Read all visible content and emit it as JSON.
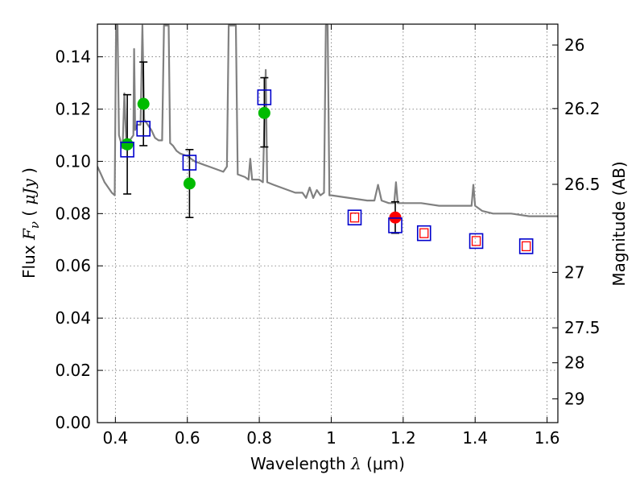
{
  "chart_data": {
    "type": "scatter",
    "title": "",
    "xlabel": "Wavelength",
    "xlabel_symbol": "λ",
    "xlabel_unit": "μm",
    "ylabel": "Flux",
    "ylabel_symbol": "F",
    "ylabel_subscript": "ν",
    "ylabel_unit": "μJy",
    "y2label": "Magnitude (AB)",
    "xlim": [
      0.35,
      1.63
    ],
    "ylim": [
      0.0,
      0.1525
    ],
    "grid": true,
    "x_ticks": [
      0.4,
      0.6,
      0.8,
      1.0,
      1.2,
      1.4,
      1.6
    ],
    "x_tick_labels": [
      "0.4",
      "0.6",
      "0.8",
      "1",
      "1.2",
      "1.4",
      "1.6"
    ],
    "y_ticks": [
      0.0,
      0.02,
      0.04,
      0.06,
      0.08,
      0.1,
      0.12,
      0.14
    ],
    "y_tick_labels": [
      "0.00",
      "0.02",
      "0.04",
      "0.06",
      "0.08",
      "0.10",
      "0.12",
      "0.14"
    ],
    "y2_ticks": [
      {
        "label": "26",
        "flux": 0.1445
      },
      {
        "label": "26.2",
        "flux": 0.1202
      },
      {
        "label": "26.5",
        "flux": 0.0912
      },
      {
        "label": "27",
        "flux": 0.0575
      },
      {
        "label": "27.5",
        "flux": 0.0363
      },
      {
        "label": "28",
        "flux": 0.0229
      },
      {
        "label": "29",
        "flux": 0.0091
      }
    ],
    "series": [
      {
        "name": "Model spectrum",
        "kind": "line",
        "color": "#808080",
        "points": [
          [
            0.35,
            0.098
          ],
          [
            0.36,
            0.095
          ],
          [
            0.37,
            0.092
          ],
          [
            0.38,
            0.09
          ],
          [
            0.39,
            0.088
          ],
          [
            0.398,
            0.087
          ],
          [
            0.402,
            0.152
          ],
          [
            0.406,
            0.152
          ],
          [
            0.41,
            0.11
          ],
          [
            0.42,
            0.105
          ],
          [
            0.425,
            0.126
          ],
          [
            0.43,
            0.108
          ],
          [
            0.44,
            0.108
          ],
          [
            0.45,
            0.11
          ],
          [
            0.452,
            0.143
          ],
          [
            0.455,
            0.112
          ],
          [
            0.46,
            0.114
          ],
          [
            0.47,
            0.114
          ],
          [
            0.475,
            0.152
          ],
          [
            0.48,
            0.116
          ],
          [
            0.49,
            0.114
          ],
          [
            0.5,
            0.112
          ],
          [
            0.51,
            0.109
          ],
          [
            0.52,
            0.108
          ],
          [
            0.53,
            0.108
          ],
          [
            0.535,
            0.152
          ],
          [
            0.545,
            0.152
          ],
          [
            0.548,
            0.152
          ],
          [
            0.552,
            0.107
          ],
          [
            0.56,
            0.106
          ],
          [
            0.57,
            0.104
          ],
          [
            0.58,
            0.103
          ],
          [
            0.6,
            0.102
          ],
          [
            0.62,
            0.1
          ],
          [
            0.64,
            0.099
          ],
          [
            0.66,
            0.098
          ],
          [
            0.68,
            0.097
          ],
          [
            0.7,
            0.096
          ],
          [
            0.71,
            0.098
          ],
          [
            0.715,
            0.152
          ],
          [
            0.725,
            0.152
          ],
          [
            0.735,
            0.152
          ],
          [
            0.74,
            0.095
          ],
          [
            0.76,
            0.094
          ],
          [
            0.77,
            0.093
          ],
          [
            0.775,
            0.101
          ],
          [
            0.78,
            0.093
          ],
          [
            0.8,
            0.093
          ],
          [
            0.81,
            0.092
          ],
          [
            0.818,
            0.135
          ],
          [
            0.822,
            0.092
          ],
          [
            0.84,
            0.091
          ],
          [
            0.86,
            0.09
          ],
          [
            0.88,
            0.089
          ],
          [
            0.9,
            0.088
          ],
          [
            0.92,
            0.088
          ],
          [
            0.93,
            0.086
          ],
          [
            0.94,
            0.09
          ],
          [
            0.95,
            0.086
          ],
          [
            0.96,
            0.089
          ],
          [
            0.97,
            0.087
          ],
          [
            0.98,
            0.088
          ],
          [
            0.985,
            0.152
          ],
          [
            0.99,
            0.152
          ],
          [
            0.995,
            0.087
          ],
          [
            1.0,
            0.087
          ],
          [
            1.05,
            0.086
          ],
          [
            1.1,
            0.085
          ],
          [
            1.12,
            0.085
          ],
          [
            1.13,
            0.091
          ],
          [
            1.14,
            0.085
          ],
          [
            1.16,
            0.084
          ],
          [
            1.175,
            0.084
          ],
          [
            1.18,
            0.092
          ],
          [
            1.185,
            0.084
          ],
          [
            1.2,
            0.084
          ],
          [
            1.25,
            0.084
          ],
          [
            1.3,
            0.083
          ],
          [
            1.35,
            0.083
          ],
          [
            1.38,
            0.083
          ],
          [
            1.39,
            0.083
          ],
          [
            1.395,
            0.091
          ],
          [
            1.4,
            0.083
          ],
          [
            1.42,
            0.081
          ],
          [
            1.45,
            0.08
          ],
          [
            1.5,
            0.08
          ],
          [
            1.55,
            0.079
          ],
          [
            1.63,
            0.079
          ]
        ]
      },
      {
        "name": "Observed photometry",
        "kind": "errorbar",
        "color": "#000000",
        "points": [
          {
            "x": 0.433,
            "y": 0.1065,
            "ylo": 0.0875,
            "yhi": 0.1255
          },
          {
            "x": 0.478,
            "y": 0.122,
            "ylo": 0.106,
            "yhi": 0.138
          },
          {
            "x": 0.606,
            "y": 0.0915,
            "ylo": 0.0785,
            "yhi": 0.1045
          },
          {
            "x": 0.814,
            "y": 0.1185,
            "ylo": 0.1055,
            "yhi": 0.132
          },
          {
            "x": 1.178,
            "y": 0.0785,
            "ylo": 0.0725,
            "yhi": 0.0845
          }
        ]
      },
      {
        "name": "Measured flux (optical)",
        "kind": "circle",
        "color": "#00bb00",
        "points": [
          [
            0.433,
            0.1065
          ],
          [
            0.478,
            0.122
          ],
          [
            0.606,
            0.0915
          ],
          [
            0.814,
            0.1185
          ]
        ]
      },
      {
        "name": "Measured flux (NIR)",
        "kind": "circle",
        "color": "#ff0000",
        "points": [
          [
            1.178,
            0.0785
          ]
        ]
      },
      {
        "name": "Model synthetic flux",
        "kind": "square",
        "color": "#0000cc",
        "points": [
          [
            0.433,
            0.1045
          ],
          [
            0.478,
            0.1125
          ],
          [
            0.606,
            0.0995
          ],
          [
            0.814,
            0.1245
          ],
          [
            1.065,
            0.0785
          ],
          [
            1.178,
            0.0755
          ],
          [
            1.258,
            0.0725
          ],
          [
            1.403,
            0.0695
          ],
          [
            1.542,
            0.0675
          ]
        ]
      },
      {
        "name": "Model synthetic flux (no data)",
        "kind": "small-square",
        "color": "#ff0000",
        "points": [
          [
            1.065,
            0.0785
          ],
          [
            1.258,
            0.0725
          ],
          [
            1.403,
            0.0695
          ],
          [
            1.542,
            0.0675
          ]
        ]
      }
    ]
  }
}
